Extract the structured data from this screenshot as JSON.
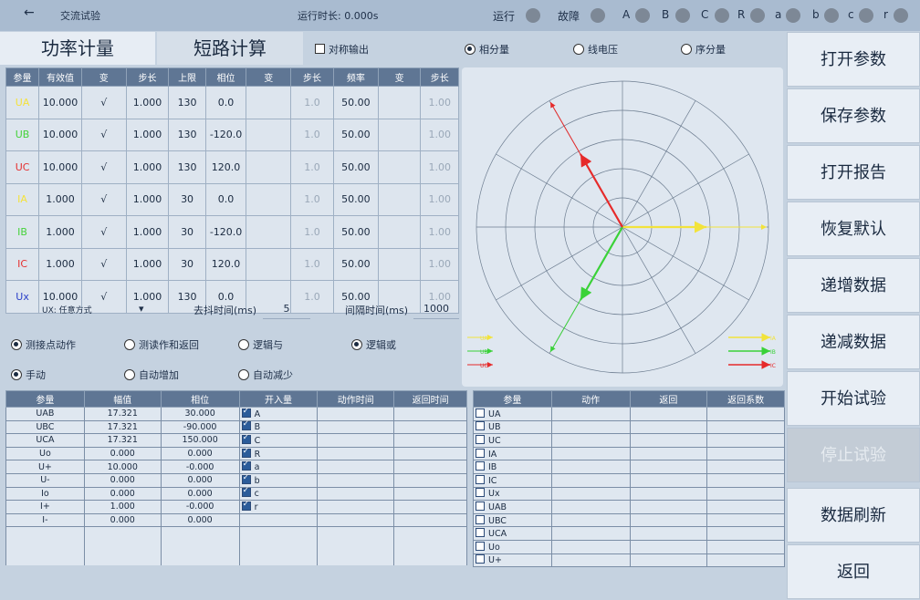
{
  "header": {
    "back_arrow": "←",
    "title": "交流试验",
    "runtime_label": "运行时长: 0.000s",
    "indicators": [
      "运行",
      "故障",
      "A",
      "B",
      "C",
      "R",
      "a",
      "b",
      "c",
      "r"
    ]
  },
  "tabs": [
    "功率计量",
    "短路计算"
  ],
  "options": {
    "symmetric": "对称输出",
    "modes": [
      "相分量",
      "线电压",
      "序分量"
    ]
  },
  "channel_table": {
    "headers": [
      "参量",
      "有效值",
      "变",
      "步长",
      "上限",
      "相位",
      "变",
      "步长",
      "频率",
      "变",
      "步长"
    ],
    "rows": [
      {
        "name": "UA",
        "color": "#f5e23a",
        "val": "10.000",
        "v1": "√",
        "step": "1.000",
        "limit": "130",
        "phase": "0.0",
        "v2": "",
        "step2": "1.0",
        "freq": "50.00",
        "v3": "",
        "step3": "1.00"
      },
      {
        "name": "UB",
        "color": "#45d23a",
        "val": "10.000",
        "v1": "√",
        "step": "1.000",
        "limit": "130",
        "phase": "-120.0",
        "v2": "",
        "step2": "1.0",
        "freq": "50.00",
        "v3": "",
        "step3": "1.00"
      },
      {
        "name": "UC",
        "color": "#e53030",
        "val": "10.000",
        "v1": "√",
        "step": "1.000",
        "limit": "130",
        "phase": "120.0",
        "v2": "",
        "step2": "1.0",
        "freq": "50.00",
        "v3": "",
        "step3": "1.00"
      },
      {
        "name": "IA",
        "color": "#f5e23a",
        "val": "1.000",
        "v1": "√",
        "step": "1.000",
        "limit": "30",
        "phase": "0.0",
        "v2": "",
        "step2": "1.0",
        "freq": "50.00",
        "v3": "",
        "step3": "1.00"
      },
      {
        "name": "IB",
        "color": "#45d23a",
        "val": "1.000",
        "v1": "√",
        "step": "1.000",
        "limit": "30",
        "phase": "-120.0",
        "v2": "",
        "step2": "1.0",
        "freq": "50.00",
        "v3": "",
        "step3": "1.00"
      },
      {
        "name": "IC",
        "color": "#e53030",
        "val": "1.000",
        "v1": "√",
        "step": "1.000",
        "limit": "30",
        "phase": "120.0",
        "v2": "",
        "step2": "1.0",
        "freq": "50.00",
        "v3": "",
        "step3": "1.00"
      },
      {
        "name": "Ux",
        "color": "#2a3fc8",
        "val": "10.000",
        "v1": "√",
        "step": "1.000",
        "limit": "130",
        "phase": "0.0",
        "v2": "",
        "step2": "1.0",
        "freq": "50.00",
        "v3": "",
        "step3": "1.00"
      }
    ]
  },
  "settings": {
    "ux_mode": "UX: 任意方式",
    "dropdown_arrow": "▾",
    "debounce_label": "去抖时间(ms)",
    "debounce_value": "5",
    "interval_label": "间隔时间(ms)",
    "interval_value": "1000",
    "action_modes": [
      "测接点动作",
      "测读作和返回",
      "逻辑与",
      "逻辑或"
    ],
    "step_modes": [
      "手动",
      "自动增加",
      "自动减少"
    ]
  },
  "vector_legend": [
    "UA",
    "UB",
    "UC",
    "IA",
    "IB",
    "IC"
  ],
  "calc_table": {
    "headers": [
      "参量",
      "幅值",
      "相位",
      "开入量",
      "动作时间",
      "返回时间"
    ],
    "rows": [
      {
        "name": "UAB",
        "amp": "17.321",
        "phase": "30.000",
        "input": "A"
      },
      {
        "name": "UBC",
        "amp": "17.321",
        "phase": "-90.000",
        "input": "B"
      },
      {
        "name": "UCA",
        "amp": "17.321",
        "phase": "150.000",
        "input": "C"
      },
      {
        "name": "Uo",
        "amp": "0.000",
        "phase": "0.000",
        "input": "R"
      },
      {
        "name": "U+",
        "amp": "10.000",
        "phase": "-0.000",
        "input": "a"
      },
      {
        "name": "U-",
        "amp": "0.000",
        "phase": "0.000",
        "input": "b"
      },
      {
        "name": "Io",
        "amp": "0.000",
        "phase": "0.000",
        "input": "c"
      },
      {
        "name": "I+",
        "amp": "1.000",
        "phase": "-0.000",
        "input": "r"
      },
      {
        "name": "I-",
        "amp": "0.000",
        "phase": "0.000",
        "input": ""
      }
    ]
  },
  "result_table": {
    "headers": [
      "参量",
      "动作",
      "返回",
      "返回系数"
    ],
    "rows": [
      "UA",
      "UB",
      "UC",
      "IA",
      "IB",
      "IC",
      "Ux",
      "UAB",
      "UBC",
      "UCA",
      "Uo",
      "U+"
    ]
  },
  "buttons": [
    "打开参数",
    "保存参数",
    "打开报告",
    "恢复默认",
    "递增数据",
    "递减数据",
    "开始试验",
    "停止试验",
    "数据刷新",
    "返回"
  ]
}
